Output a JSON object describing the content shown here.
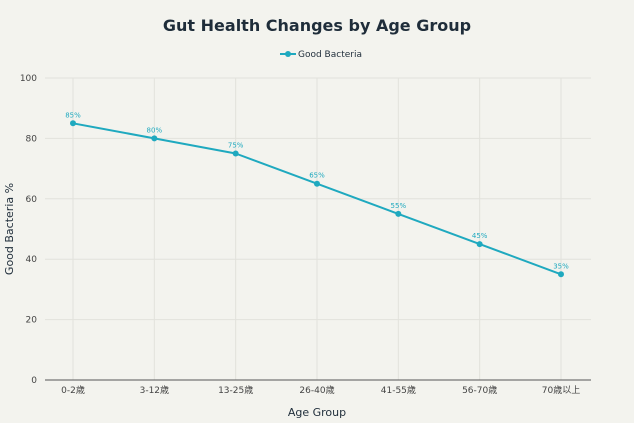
{
  "chart_data": {
    "type": "line",
    "title": "Gut Health Changes by Age Group",
    "xlabel": "Age Group",
    "ylabel": "Good Bacteria %",
    "ylim": [
      0,
      100
    ],
    "yticks": [
      0,
      20,
      40,
      60,
      80,
      100
    ],
    "grid": true,
    "legend_position": "top-center",
    "categories": [
      "0-2歳",
      "3-12歳",
      "13-25歳",
      "26-40歳",
      "41-55歳",
      "56-70歳",
      "70歳以上"
    ],
    "series": [
      {
        "name": "Good Bacteria",
        "color": "#1fa9bf",
        "values": [
          85,
          80,
          75,
          65,
          55,
          45,
          35
        ],
        "labels": [
          "85%",
          "80%",
          "75%",
          "65%",
          "55%",
          "45%",
          "35%"
        ]
      }
    ]
  }
}
